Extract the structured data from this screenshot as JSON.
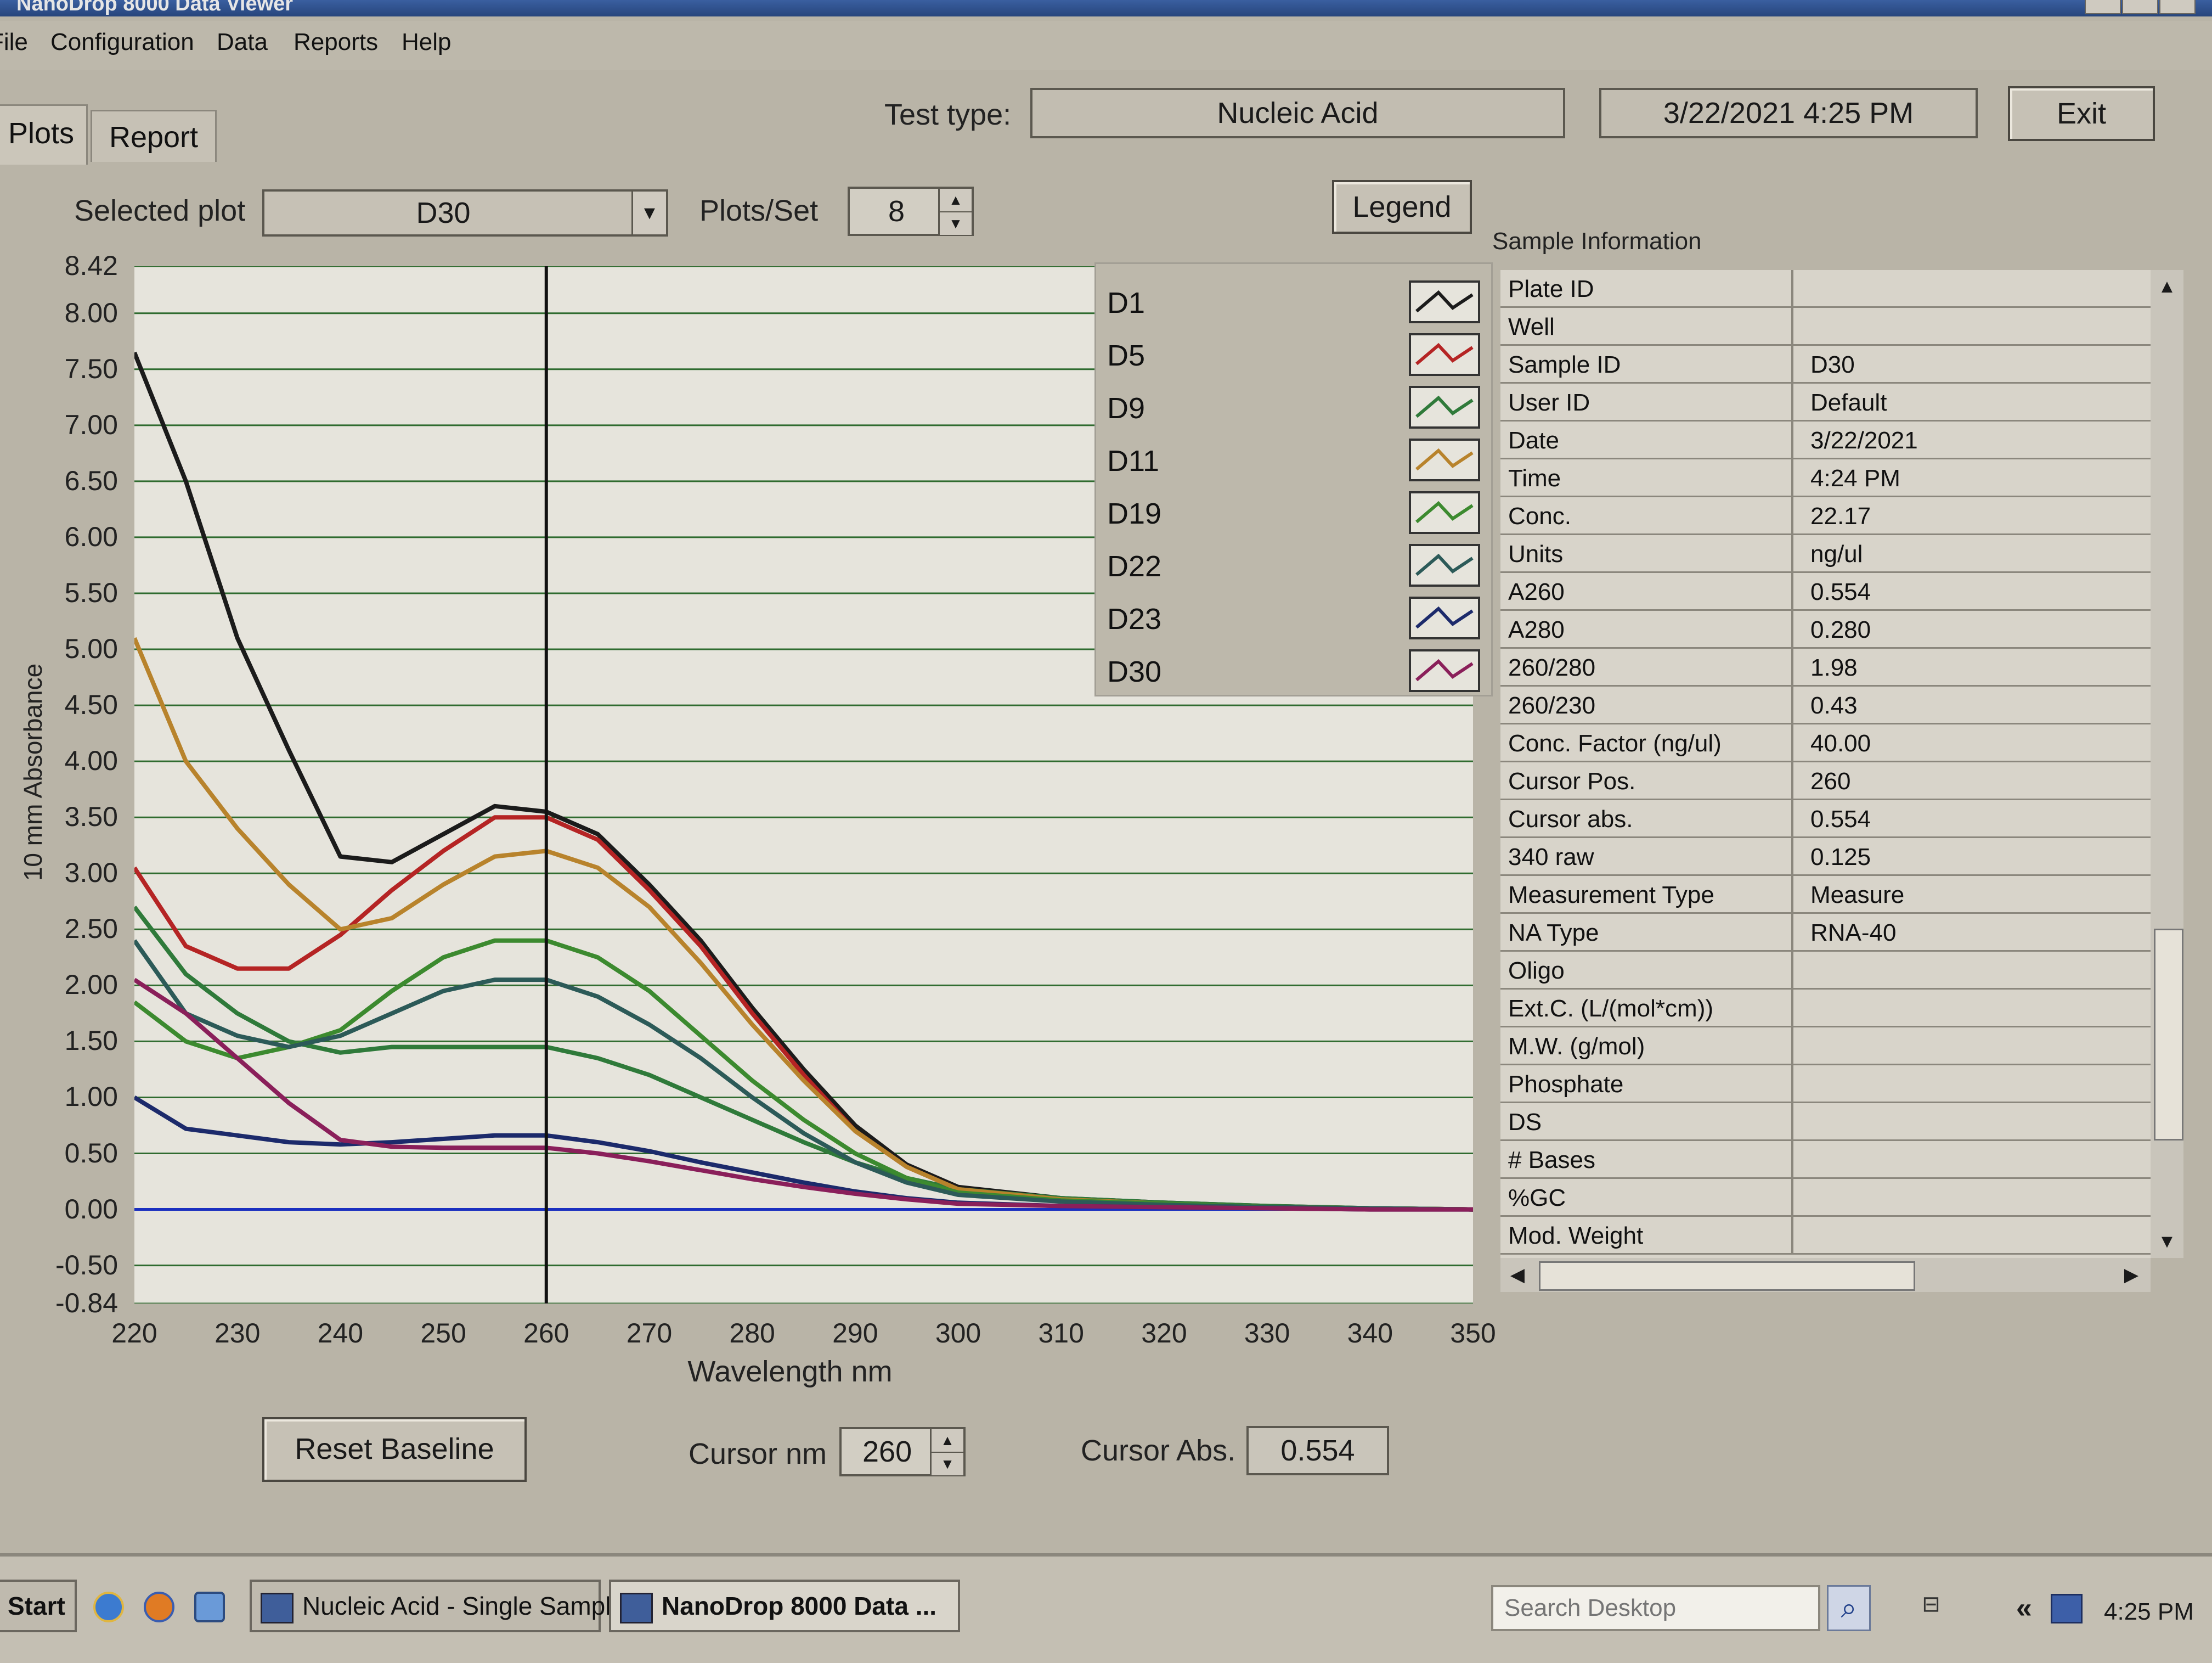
{
  "window": {
    "title": "NanoDrop 8000 Data Viewer"
  },
  "menu": [
    "File",
    "Configuration",
    "Data",
    "Reports",
    "Help"
  ],
  "tabs": [
    "Plots",
    "Report"
  ],
  "header": {
    "test_type_label": "Test type:",
    "test_type_value": "Nucleic Acid",
    "datetime": "3/22/2021  4:25 PM",
    "exit_label": "Exit"
  },
  "controls": {
    "selected_plot_label": "Selected plot",
    "selected_plot_value": "D30",
    "plots_per_set_label": "Plots/Set",
    "plots_per_set_value": "8",
    "legend_label": "Legend",
    "reset_baseline_label": "Reset Baseline",
    "cursor_nm_label": "Cursor nm",
    "cursor_nm_value": "260",
    "cursor_abs_label": "Cursor Abs.",
    "cursor_abs_value": "0.554"
  },
  "legend": [
    {
      "name": "D1",
      "color": "#1b1b1b"
    },
    {
      "name": "D5",
      "color": "#b52424"
    },
    {
      "name": "D9",
      "color": "#2f7a3a"
    },
    {
      "name": "D11",
      "color": "#b8832c"
    },
    {
      "name": "D19",
      "color": "#3c8a2f"
    },
    {
      "name": "D22",
      "color": "#2c5a58"
    },
    {
      "name": "D23",
      "color": "#1c2a6b"
    },
    {
      "name": "D30",
      "color": "#8a1f5a"
    }
  ],
  "sample_info": {
    "title": "Sample Information",
    "rows": [
      {
        "key": "Plate ID",
        "value": ""
      },
      {
        "key": "Well",
        "value": ""
      },
      {
        "key": "Sample ID",
        "value": "D30"
      },
      {
        "key": "User ID",
        "value": "Default"
      },
      {
        "key": "Date",
        "value": "3/22/2021"
      },
      {
        "key": "Time",
        "value": "4:24 PM"
      },
      {
        "key": "Conc.",
        "value": "22.17"
      },
      {
        "key": "Units",
        "value": "ng/ul"
      },
      {
        "key": "A260",
        "value": "0.554"
      },
      {
        "key": "A280",
        "value": "0.280"
      },
      {
        "key": "260/280",
        "value": "1.98"
      },
      {
        "key": "260/230",
        "value": "0.43"
      },
      {
        "key": "Conc. Factor (ng/ul)",
        "value": "40.00"
      },
      {
        "key": "Cursor Pos.",
        "value": "260"
      },
      {
        "key": "Cursor abs.",
        "value": "0.554"
      },
      {
        "key": "340 raw",
        "value": "0.125"
      },
      {
        "key": "Measurement Type",
        "value": "Measure"
      },
      {
        "key": "NA Type",
        "value": "RNA-40"
      },
      {
        "key": "Oligo",
        "value": ""
      },
      {
        "key": "Ext.C. (L/(mol*cm))",
        "value": ""
      },
      {
        "key": "M.W. (g/mol)",
        "value": ""
      },
      {
        "key": "Phosphate",
        "value": ""
      },
      {
        "key": "DS",
        "value": ""
      },
      {
        "key": "# Bases",
        "value": ""
      },
      {
        "key": "%GC",
        "value": ""
      },
      {
        "key": "Mod. Weight",
        "value": ""
      }
    ]
  },
  "chart_data": {
    "type": "line",
    "xlabel": "Wavelength nm",
    "ylabel": "10 mm Absorbance",
    "xlim": [
      220,
      350
    ],
    "ylim": [
      -0.84,
      8.42
    ],
    "x_ticks": [
      "220",
      "230",
      "240",
      "250",
      "260",
      "270",
      "280",
      "290",
      "300",
      "310",
      "320",
      "330",
      "340",
      "350"
    ],
    "y_ticks": [
      "8.42",
      "8.00",
      "7.50",
      "7.00",
      "6.50",
      "6.00",
      "5.50",
      "5.00",
      "4.50",
      "4.00",
      "3.50",
      "3.00",
      "2.50",
      "2.00",
      "1.50",
      "1.00",
      "0.50",
      "0.00",
      "-0.50",
      "-0.84"
    ],
    "grid": true,
    "cursor_x": 260,
    "x": [
      220,
      225,
      230,
      235,
      240,
      245,
      250,
      255,
      260,
      265,
      270,
      275,
      280,
      285,
      290,
      295,
      300,
      310,
      320,
      330,
      340,
      350
    ],
    "series": [
      {
        "name": "D1",
        "values": [
          7.65,
          6.5,
          5.1,
          4.1,
          3.15,
          3.1,
          3.35,
          3.6,
          3.55,
          3.35,
          2.9,
          2.4,
          1.8,
          1.25,
          0.75,
          0.4,
          0.2,
          0.1,
          0.06,
          0.03,
          0.01,
          0.0
        ]
      },
      {
        "name": "D5",
        "values": [
          3.05,
          2.35,
          2.15,
          2.15,
          2.45,
          2.85,
          3.2,
          3.5,
          3.5,
          3.3,
          2.85,
          2.35,
          1.75,
          1.2,
          0.7,
          0.38,
          0.18,
          0.09,
          0.05,
          0.02,
          0.01,
          0.0
        ]
      },
      {
        "name": "D9",
        "values": [
          2.7,
          2.1,
          1.75,
          1.5,
          1.4,
          1.45,
          1.45,
          1.45,
          1.45,
          1.35,
          1.2,
          1.0,
          0.8,
          0.6,
          0.42,
          0.28,
          0.18,
          0.1,
          0.06,
          0.03,
          0.01,
          0.0
        ]
      },
      {
        "name": "D11",
        "values": [
          5.1,
          4.0,
          3.4,
          2.9,
          2.5,
          2.6,
          2.9,
          3.15,
          3.2,
          3.05,
          2.7,
          2.2,
          1.65,
          1.15,
          0.7,
          0.38,
          0.18,
          0.09,
          0.05,
          0.02,
          0.01,
          0.0
        ]
      },
      {
        "name": "D19",
        "values": [
          1.85,
          1.5,
          1.35,
          1.45,
          1.6,
          1.95,
          2.25,
          2.4,
          2.4,
          2.25,
          1.95,
          1.55,
          1.15,
          0.8,
          0.5,
          0.28,
          0.15,
          0.08,
          0.05,
          0.02,
          0.01,
          0.0
        ]
      },
      {
        "name": "D22",
        "values": [
          2.4,
          1.75,
          1.55,
          1.45,
          1.55,
          1.75,
          1.95,
          2.05,
          2.05,
          1.9,
          1.65,
          1.35,
          1.0,
          0.68,
          0.42,
          0.24,
          0.13,
          0.07,
          0.04,
          0.02,
          0.01,
          0.0
        ]
      },
      {
        "name": "D23",
        "values": [
          1.0,
          0.72,
          0.66,
          0.6,
          0.58,
          0.6,
          0.63,
          0.66,
          0.66,
          0.6,
          0.52,
          0.42,
          0.33,
          0.24,
          0.16,
          0.1,
          0.06,
          0.03,
          0.02,
          0.01,
          0.0,
          0.0
        ]
      },
      {
        "name": "D30",
        "values": [
          2.05,
          1.75,
          1.35,
          0.95,
          0.62,
          0.56,
          0.55,
          0.55,
          0.55,
          0.5,
          0.43,
          0.35,
          0.27,
          0.2,
          0.14,
          0.09,
          0.05,
          0.03,
          0.02,
          0.01,
          0.0,
          0.0
        ]
      }
    ]
  },
  "taskbar": {
    "start_label": "Start",
    "task1": "Nucleic Acid - Single Sample",
    "task2": "NanoDrop 8000 Data ...",
    "search_placeholder": "Search Desktop",
    "clock": "4:25 PM",
    "tray_arrow": "«"
  }
}
